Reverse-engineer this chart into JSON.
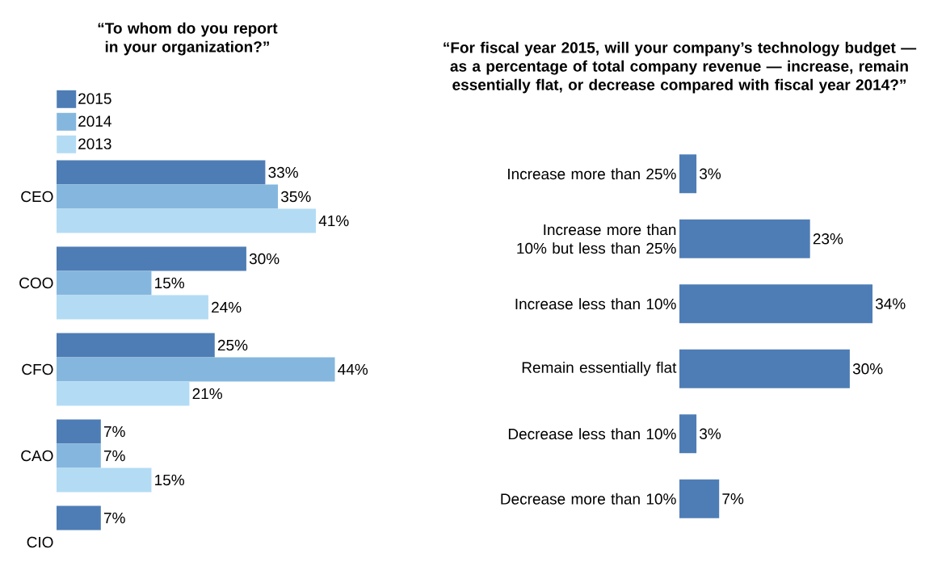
{
  "chart_data": [
    {
      "type": "bar",
      "orientation": "horizontal",
      "title": "“To whom do you report in your organization?”",
      "categories": [
        "CEO",
        "COO",
        "CFO",
        "CAO",
        "CIO"
      ],
      "legend": "top left",
      "series": [
        {
          "name": "2015",
          "color": "#4e7db5",
          "values": [
            33,
            30,
            25,
            7,
            7
          ],
          "value_labels": [
            "33%",
            "30%",
            "25%",
            "7%",
            "7%"
          ]
        },
        {
          "name": "2014",
          "color": "#85b7de",
          "values": [
            35,
            15,
            44,
            7,
            null
          ],
          "value_labels": [
            "35%",
            "15%",
            "44%",
            "7%",
            null
          ]
        },
        {
          "name": "2013",
          "color": "#b3dcf4",
          "values": [
            41,
            24,
            21,
            15,
            null
          ],
          "value_labels": [
            "41%",
            "24%",
            "21%",
            "15%",
            null
          ]
        }
      ]
    },
    {
      "type": "bar",
      "orientation": "horizontal",
      "title": "“For fiscal year 2015, will your company’s technology budget — as a percentage of total company revenue — increase, remain essentially flat, or decrease compared with fiscal year 2014?”",
      "categories": [
        "Increase more than 25%",
        "Increase more than 10% but less than 25%",
        "Increase less than 10%",
        "Remain essentially flat",
        "Decrease less than 10%",
        "Decrease more than 10%"
      ],
      "color": "#4e7db5",
      "values": [
        3,
        23,
        34,
        30,
        3,
        7
      ],
      "value_labels": [
        "3%",
        "23%",
        "34%",
        "30%",
        "3%",
        "7%"
      ]
    }
  ]
}
